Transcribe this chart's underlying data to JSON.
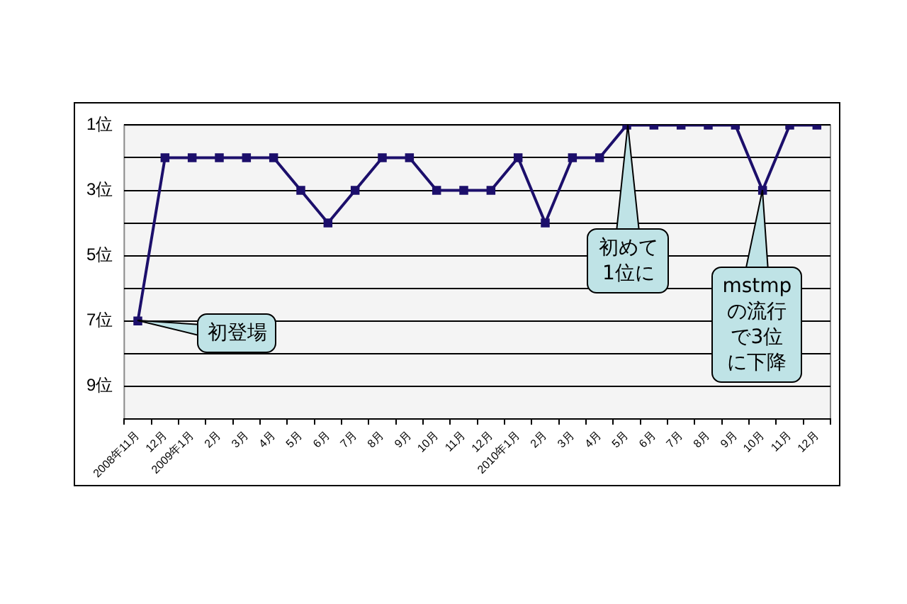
{
  "chart_data": {
    "type": "line",
    "categories": [
      "2008年11月",
      "12月",
      "2009年1月",
      "2月",
      "3月",
      "4月",
      "5月",
      "6月",
      "7月",
      "8月",
      "9月",
      "10月",
      "11月",
      "12月",
      "2010年1月",
      "2月",
      "3月",
      "4月",
      "5月",
      "6月",
      "7月",
      "8月",
      "9月",
      "10月",
      "11月",
      "12月"
    ],
    "values": [
      7,
      2,
      2,
      2,
      2,
      2,
      3,
      4,
      3,
      2,
      2,
      3,
      3,
      3,
      2,
      4,
      2,
      2,
      1,
      1,
      1,
      1,
      1,
      3,
      1,
      1
    ],
    "color": "#1c0f6b",
    "marker": "square",
    "line_style": "solid",
    "ylim": [
      10,
      1
    ],
    "yticks": [
      {
        "value": 1,
        "label": "1位"
      },
      {
        "value": 2,
        "label": null
      },
      {
        "value": 3,
        "label": "3位"
      },
      {
        "value": 4,
        "label": null
      },
      {
        "value": 5,
        "label": "5位"
      },
      {
        "value": 6,
        "label": null
      },
      {
        "value": 7,
        "label": "7位"
      },
      {
        "value": 8,
        "label": null
      },
      {
        "value": 9,
        "label": "9位"
      },
      {
        "value": 10,
        "label": null
      }
    ],
    "grid": "y",
    "legend": false,
    "annotations": [
      {
        "text": "初登場",
        "x": "2008年11月",
        "y": 7
      },
      "初めて1位に",
      "mstmpの流行で3位に下降"
    ]
  }
}
